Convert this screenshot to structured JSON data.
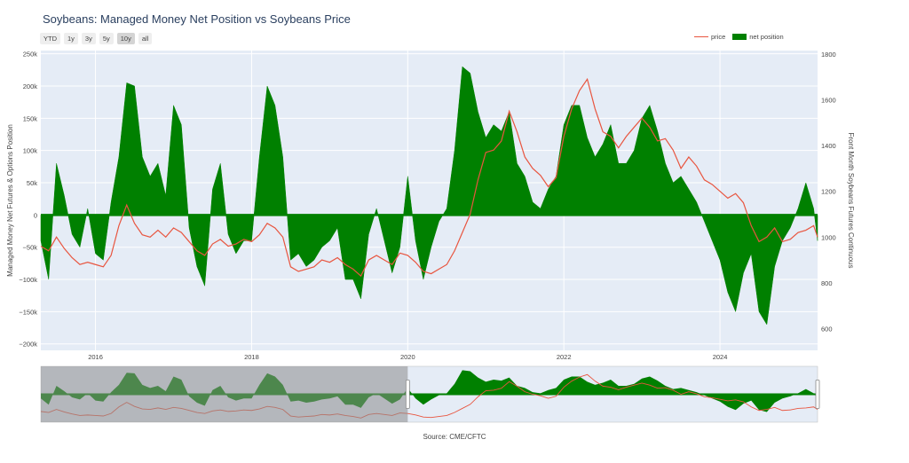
{
  "title": "Soybeans: Managed Money Net Position vs Soybeans Price",
  "range_buttons": [
    "YTD",
    "1y",
    "3y",
    "5y",
    "10y",
    "all"
  ],
  "active_range": "10y",
  "legend": {
    "price": "price",
    "net": "net position"
  },
  "source": "Source: CME/CFTC",
  "colors": {
    "price": "#e8553f",
    "net": "#008000",
    "plot_bg": "#e5ecf6",
    "selection": "#8c8c8c"
  },
  "chart_data": {
    "type": "area",
    "title": "Soybeans: Managed Money Net Position vs Soybeans Price",
    "xlabel": "",
    "ylabel": "Managed Money Net Futures & Options Position",
    "y2label": "Front Month Soybeans Futures Continuous",
    "xlim": [
      2015.3,
      2025.25
    ],
    "ylim": [
      -210000,
      255000
    ],
    "y2lim": [
      505,
      1815
    ],
    "x_ticks": [
      "2016",
      "2018",
      "2020",
      "2022",
      "2024"
    ],
    "y_ticks": [
      "250k",
      "200k",
      "150k",
      "100k",
      "50k",
      "0",
      "−50k",
      "−100k",
      "−150k",
      "−200k"
    ],
    "y2_ticks": [
      "1800",
      "1600",
      "1400",
      "1200",
      "1000",
      "800",
      "600"
    ],
    "grid": true,
    "legend_position": "top-right",
    "series": [
      {
        "name": "net position",
        "type": "area",
        "x": [
          2015.3,
          2015.4,
          2015.5,
          2015.6,
          2015.7,
          2015.8,
          2015.9,
          2016.0,
          2016.1,
          2016.2,
          2016.3,
          2016.4,
          2016.5,
          2016.6,
          2016.7,
          2016.8,
          2016.9,
          2017.0,
          2017.1,
          2017.2,
          2017.3,
          2017.4,
          2017.5,
          2017.6,
          2017.7,
          2017.8,
          2017.9,
          2018.0,
          2018.1,
          2018.2,
          2018.3,
          2018.4,
          2018.5,
          2018.6,
          2018.7,
          2018.8,
          2018.9,
          2019.0,
          2019.1,
          2019.2,
          2019.3,
          2019.4,
          2019.5,
          2019.6,
          2019.7,
          2019.8,
          2019.9,
          2020.0,
          2020.1,
          2020.2,
          2020.3,
          2020.4,
          2020.5,
          2020.6,
          2020.7,
          2020.8,
          2020.9,
          2021.0,
          2021.1,
          2021.2,
          2021.3,
          2021.4,
          2021.5,
          2021.6,
          2021.7,
          2021.8,
          2021.9,
          2022.0,
          2022.1,
          2022.2,
          2022.3,
          2022.4,
          2022.5,
          2022.6,
          2022.7,
          2022.8,
          2022.9,
          2023.0,
          2023.1,
          2023.2,
          2023.3,
          2023.4,
          2023.5,
          2023.6,
          2023.7,
          2023.8,
          2023.9,
          2024.0,
          2024.1,
          2024.2,
          2024.3,
          2024.4,
          2024.5,
          2024.6,
          2024.7,
          2024.8,
          2024.9,
          2025.0,
          2025.1,
          2025.2,
          2025.25
        ],
        "y": [
          -40000,
          -100000,
          80000,
          30000,
          -30000,
          -50000,
          10000,
          -60000,
          -70000,
          20000,
          90000,
          205000,
          200000,
          90000,
          60000,
          80000,
          30000,
          170000,
          140000,
          -20000,
          -80000,
          -110000,
          40000,
          80000,
          -30000,
          -60000,
          -40000,
          -40000,
          90000,
          200000,
          170000,
          90000,
          -70000,
          -60000,
          -80000,
          -70000,
          -50000,
          -40000,
          -20000,
          -100000,
          -100000,
          -130000,
          -30000,
          10000,
          -40000,
          -90000,
          -50000,
          60000,
          -40000,
          -100000,
          -50000,
          -10000,
          10000,
          100000,
          230000,
          220000,
          160000,
          120000,
          140000,
          130000,
          160000,
          80000,
          60000,
          20000,
          10000,
          40000,
          60000,
          140000,
          170000,
          170000,
          120000,
          90000,
          110000,
          140000,
          80000,
          80000,
          100000,
          150000,
          170000,
          130000,
          80000,
          50000,
          60000,
          40000,
          20000,
          -10000,
          -40000,
          -70000,
          -120000,
          -150000,
          -90000,
          -60000,
          -150000,
          -170000,
          -80000,
          -40000,
          -20000,
          10000,
          50000,
          10000,
          -40000
        ]
      },
      {
        "name": "price",
        "type": "line",
        "x": [
          2015.3,
          2015.4,
          2015.5,
          2015.6,
          2015.7,
          2015.8,
          2015.9,
          2016.0,
          2016.1,
          2016.2,
          2016.3,
          2016.4,
          2016.5,
          2016.6,
          2016.7,
          2016.8,
          2016.9,
          2017.0,
          2017.1,
          2017.2,
          2017.3,
          2017.4,
          2017.5,
          2017.6,
          2017.7,
          2017.8,
          2017.9,
          2018.0,
          2018.1,
          2018.2,
          2018.3,
          2018.4,
          2018.5,
          2018.6,
          2018.7,
          2018.8,
          2018.9,
          2019.0,
          2019.1,
          2019.2,
          2019.3,
          2019.4,
          2019.5,
          2019.6,
          2019.7,
          2019.8,
          2019.9,
          2020.0,
          2020.1,
          2020.2,
          2020.3,
          2020.4,
          2020.5,
          2020.6,
          2020.7,
          2020.8,
          2020.9,
          2021.0,
          2021.1,
          2021.2,
          2021.3,
          2021.4,
          2021.5,
          2021.6,
          2021.7,
          2021.8,
          2021.9,
          2022.0,
          2022.1,
          2022.2,
          2022.3,
          2022.4,
          2022.5,
          2022.6,
          2022.7,
          2022.8,
          2022.9,
          2023.0,
          2023.1,
          2023.2,
          2023.3,
          2023.4,
          2023.5,
          2023.6,
          2023.7,
          2023.8,
          2023.9,
          2024.0,
          2024.1,
          2024.2,
          2024.3,
          2024.4,
          2024.5,
          2024.6,
          2024.7,
          2024.8,
          2024.9,
          2025.0,
          2025.1,
          2025.2,
          2025.25
        ],
        "y": [
          960,
          940,
          1000,
          950,
          910,
          880,
          890,
          880,
          870,
          920,
          1050,
          1140,
          1060,
          1010,
          1000,
          1030,
          1000,
          1040,
          1020,
          980,
          940,
          920,
          970,
          990,
          960,
          970,
          990,
          980,
          1010,
          1060,
          1040,
          1000,
          870,
          850,
          860,
          870,
          900,
          890,
          910,
          880,
          860,
          830,
          900,
          920,
          900,
          880,
          930,
          920,
          890,
          850,
          840,
          860,
          880,
          940,
          1020,
          1100,
          1250,
          1370,
          1380,
          1420,
          1550,
          1460,
          1350,
          1300,
          1270,
          1220,
          1260,
          1440,
          1560,
          1640,
          1690,
          1560,
          1460,
          1440,
          1390,
          1440,
          1480,
          1520,
          1480,
          1420,
          1430,
          1380,
          1300,
          1350,
          1310,
          1250,
          1230,
          1200,
          1170,
          1190,
          1150,
          1050,
          980,
          1000,
          1040,
          980,
          990,
          1020,
          1030,
          1050,
          1000
        ]
      }
    ]
  },
  "navigator": {
    "selected_range": [
      "2015.3",
      "2020.0"
    ]
  }
}
